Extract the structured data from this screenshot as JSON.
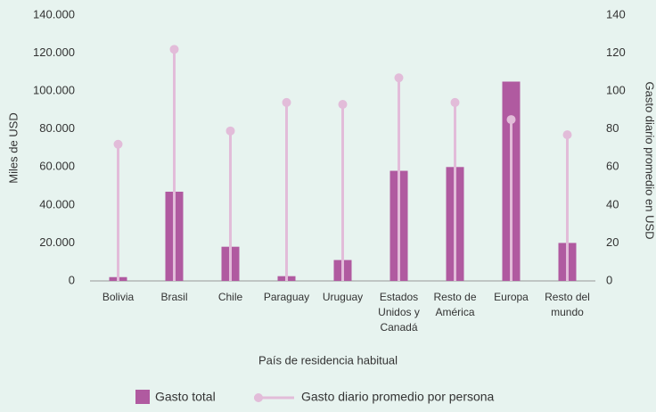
{
  "chart_data": {
    "type": "bar-lollipop",
    "x_label": "País de residencia habitual",
    "y_label": "Miles de USD",
    "y2_label": "Gasto diario promedio en USD",
    "categories": [
      "Bolivia",
      "Brasil",
      "Chile",
      "Paraguay",
      "Uruguay",
      "Estados Unidos y Canadá",
      "Resto de América",
      "Europa",
      "Resto del mundo"
    ],
    "series": [
      {
        "name": "Gasto total",
        "color": "#b05aa0",
        "values": [
          2000,
          47000,
          18000,
          2500,
          11000,
          58000,
          60000,
          105000,
          20000
        ]
      },
      {
        "name": "Gasto diario promedio por persona",
        "color": "#e2bcd9",
        "axis": "y2",
        "values": [
          72,
          122,
          79,
          94,
          93,
          107,
          94,
          85,
          77
        ]
      }
    ],
    "ylim": [
      0,
      140000
    ],
    "yticks": [
      0,
      {
        "value": 20000,
        "label": "20.000"
      },
      {
        "value": 40000,
        "label": "40.000"
      },
      {
        "value": 60000,
        "label": "60.000"
      },
      {
        "value": 80000,
        "label": "80.000"
      },
      {
        "value": 100000,
        "label": "100.000"
      },
      {
        "value": 120000,
        "label": "120.000"
      },
      {
        "value": 140000,
        "label": "140.000"
      }
    ],
    "y2lim": [
      0,
      140
    ],
    "y2ticks": [
      0,
      20,
      40,
      60,
      80,
      100,
      120,
      140
    ]
  }
}
